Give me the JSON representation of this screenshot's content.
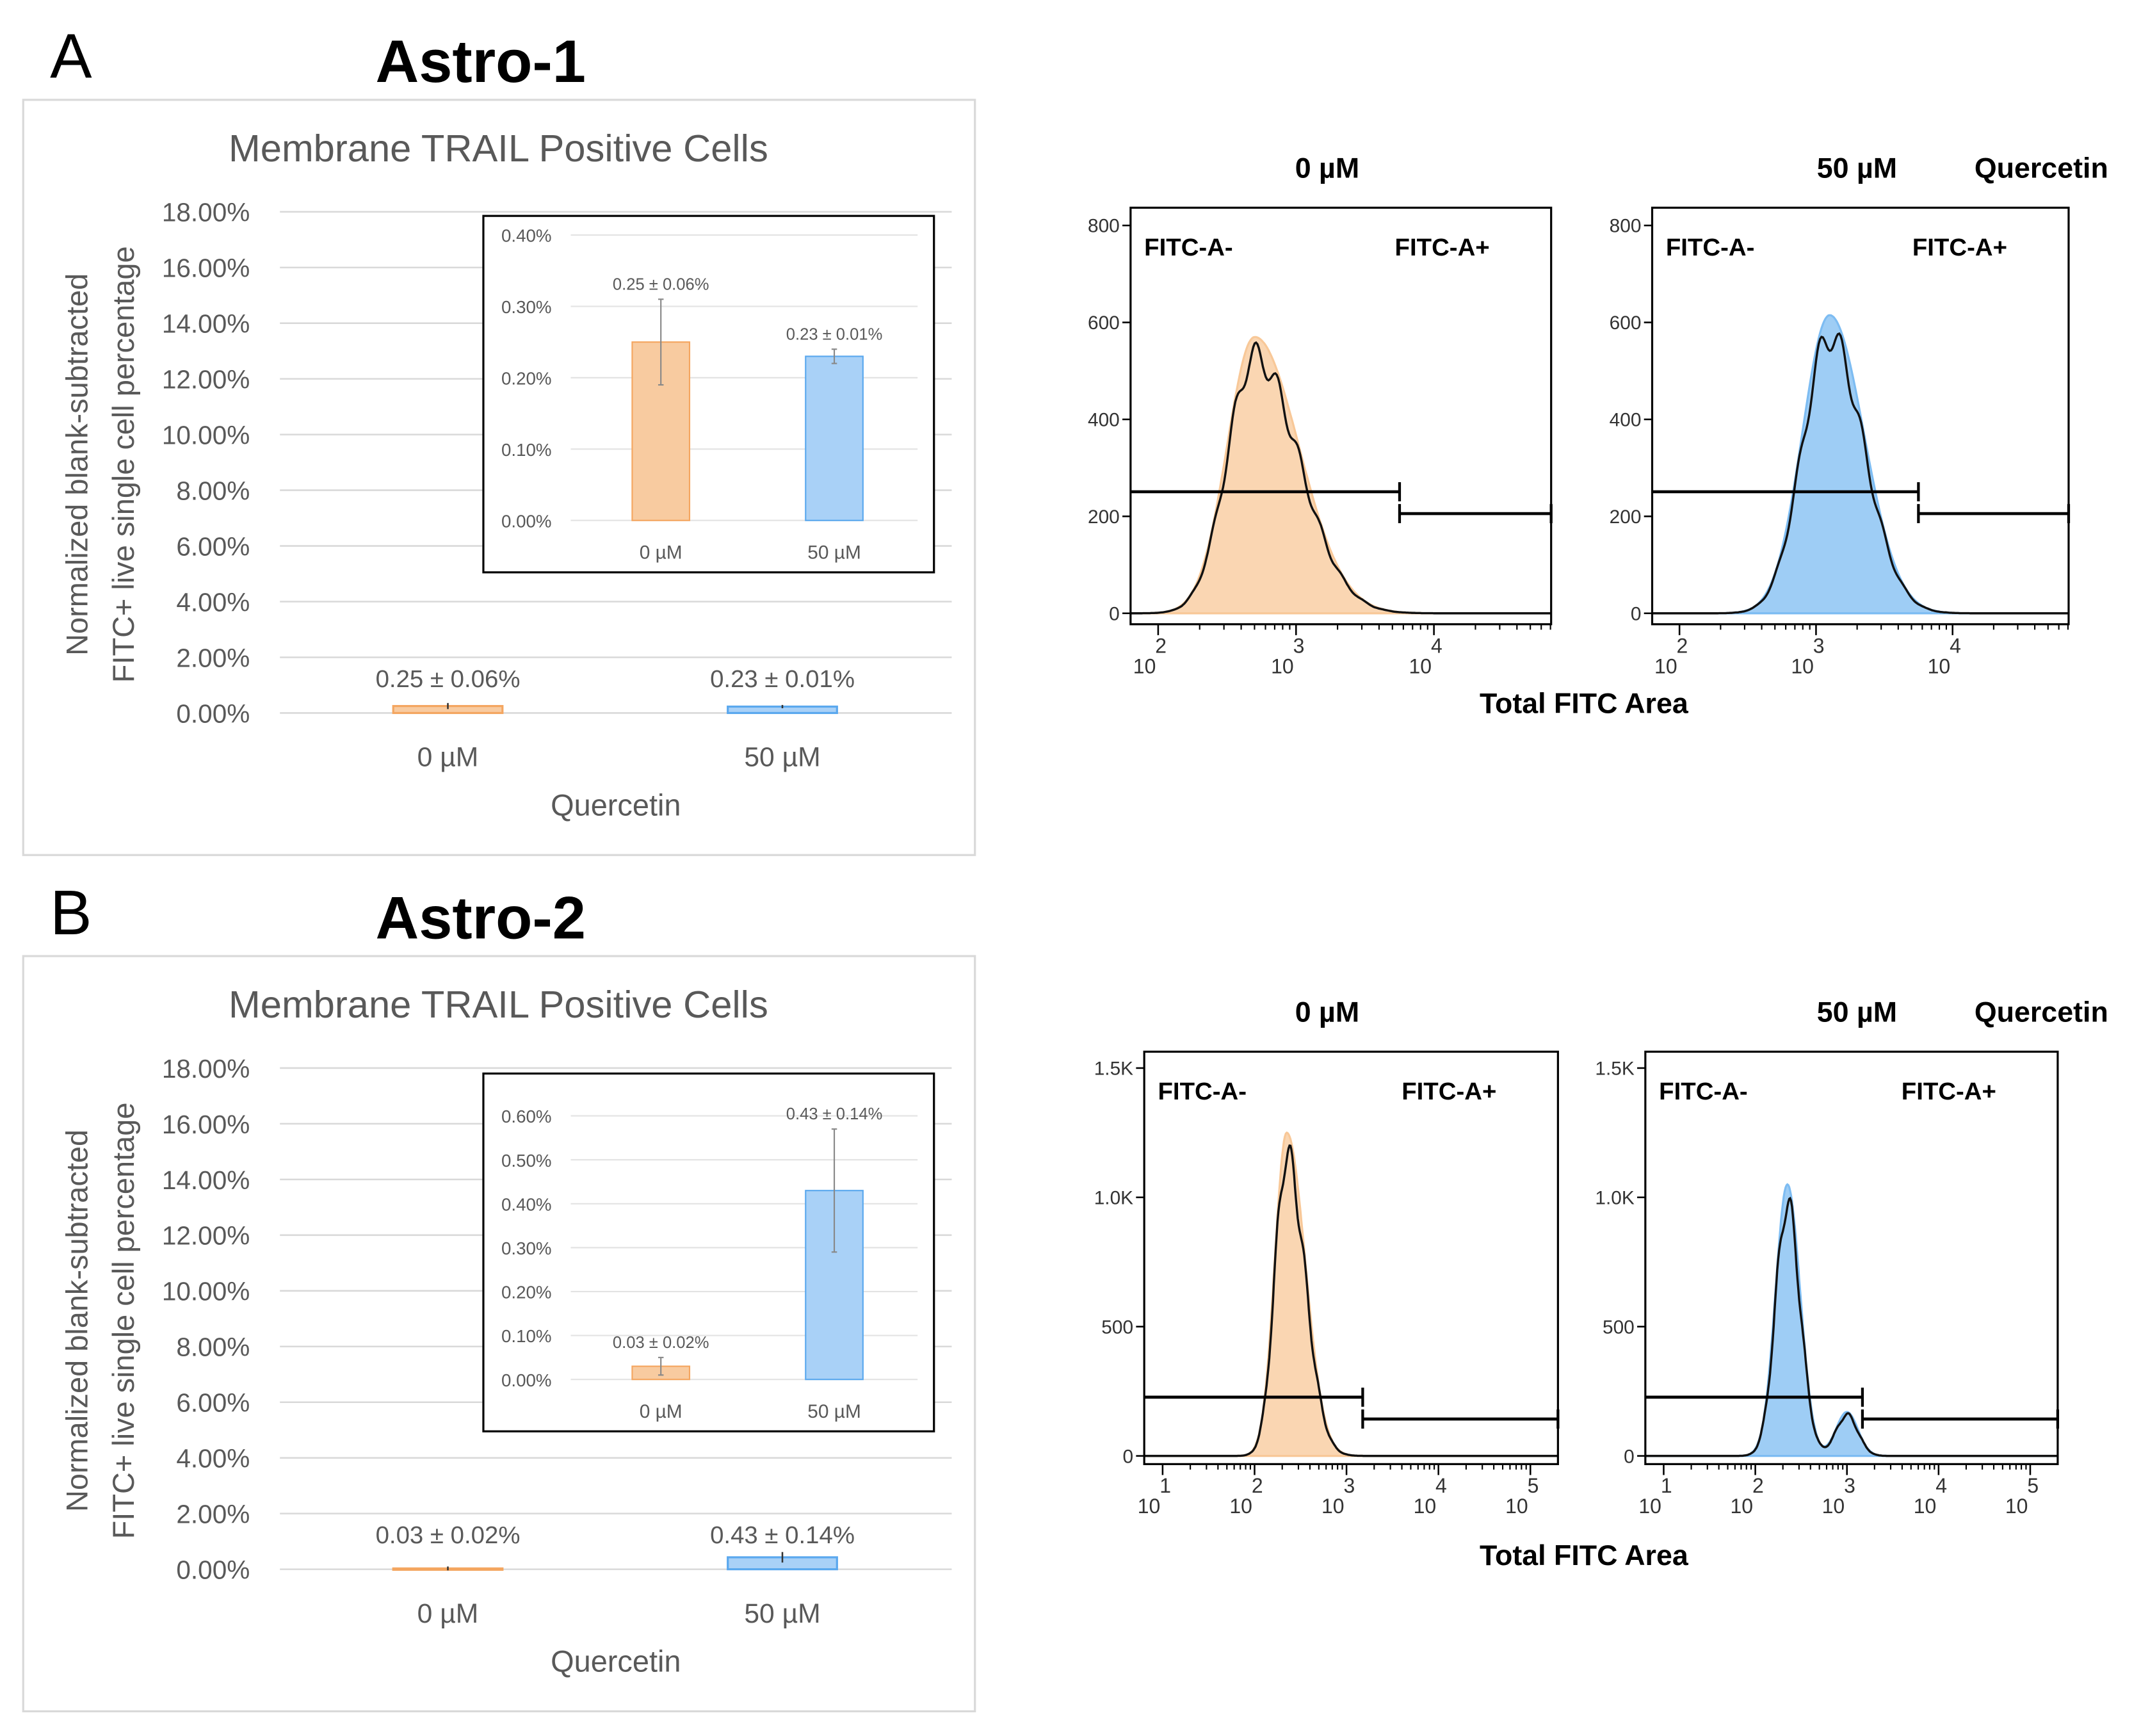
{
  "panels": [
    {
      "letter": "A",
      "title": "Astro-1",
      "bar_chart": {
        "title": "Membrane TRAIL Positive Cells",
        "ylabel_line1": "Normalized blank-subtracted",
        "ylabel_line2": "FITC+ live single cell percentage",
        "xlabel": "Quercetin",
        "yticks": [
          "0.00%",
          "2.00%",
          "4.00%",
          "6.00%",
          "8.00%",
          "10.00%",
          "12.00%",
          "14.00%",
          "16.00%",
          "18.00%"
        ]
      },
      "inset": {
        "yticks": [
          "0.00%",
          "0.10%",
          "0.20%",
          "0.30%",
          "0.40%"
        ]
      },
      "flow": {
        "yticks": [
          "0",
          "200",
          "400",
          "600",
          "800"
        ],
        "xticks": [
          {
            "base": "10",
            "exp": "2"
          },
          {
            "base": "10",
            "exp": "3"
          },
          {
            "base": "10",
            "exp": "4"
          }
        ],
        "gate_neg": "FITC-A-",
        "gate_pos": "FITC-A+",
        "xlabel": "Total FITC Area",
        "title_0": "0 µM",
        "title_50": "50 µM",
        "treatment": "Quercetin"
      }
    },
    {
      "letter": "B",
      "title": "Astro-2",
      "bar_chart": {
        "title": "Membrane TRAIL Positive Cells",
        "ylabel_line1": "Normalized blank-subtracted",
        "ylabel_line2": "FITC+ live single cell percentage",
        "xlabel": "Quercetin",
        "yticks": [
          "0.00%",
          "2.00%",
          "4.00%",
          "6.00%",
          "8.00%",
          "10.00%",
          "12.00%",
          "14.00%",
          "16.00%",
          "18.00%"
        ]
      },
      "inset": {
        "yticks": [
          "0.00%",
          "0.10%",
          "0.20%",
          "0.30%",
          "0.40%",
          "0.50%",
          "0.60%"
        ]
      },
      "flow": {
        "yticks": [
          "0",
          "500",
          "1.0K",
          "1.5K"
        ],
        "xticks": [
          {
            "base": "10",
            "exp": "1"
          },
          {
            "base": "10",
            "exp": "2"
          },
          {
            "base": "10",
            "exp": "3"
          },
          {
            "base": "10",
            "exp": "4"
          },
          {
            "base": "10",
            "exp": "5"
          }
        ],
        "gate_neg": "FITC-A-",
        "gate_pos": "FITC-A+",
        "xlabel": "Total FITC Area",
        "title_0": "0 µM",
        "title_50": "50 µM",
        "treatment": "Quercetin"
      }
    }
  ],
  "chart_data": [
    {
      "type": "bar",
      "title": "Membrane TRAIL Positive Cells (Astro-1)",
      "categories": [
        "0 µM",
        "50 µM"
      ],
      "values": [
        0.25,
        0.23
      ],
      "errors": [
        0.06,
        0.01
      ],
      "data_labels": [
        "0.25 ± 0.06%",
        "0.23 ± 0.01%"
      ],
      "ylim": [
        0,
        18
      ],
      "inset_ylim": [
        0,
        0.4
      ],
      "unit": "%",
      "colors": [
        "#f8cba0",
        "#a9d1f7"
      ],
      "edge_colors": [
        "#f4a660",
        "#5aa8ee"
      ]
    },
    {
      "type": "bar",
      "title": "Membrane TRAIL Positive Cells (Astro-2)",
      "categories": [
        "0 µM",
        "50 µM"
      ],
      "values": [
        0.03,
        0.43
      ],
      "errors": [
        0.02,
        0.14
      ],
      "data_labels": [
        "0.03 ± 0.02%",
        "0.43 ± 0.14%"
      ],
      "ylim": [
        0,
        18
      ],
      "inset_ylim": [
        0,
        0.6
      ],
      "unit": "%",
      "colors": [
        "#f8cba0",
        "#a9d1f7"
      ],
      "edge_colors": [
        "#f4a660",
        "#5aa8ee"
      ]
    },
    {
      "type": "area",
      "title": "Astro-1 histograms",
      "xlabel": "Total FITC Area",
      "xscale": "log",
      "xlim_log10": [
        1.8,
        4.85
      ],
      "ylim": [
        0,
        800
      ],
      "gate_log10": 3.8,
      "series": [
        {
          "name": "0 µM",
          "color": "#f8c898",
          "mode_log10": 2.7,
          "peak": 570,
          "sd_left": 0.2,
          "sd_right": 0.32
        },
        {
          "name": "50 µM",
          "color": "#7dbcf2",
          "mode_log10": 3.1,
          "peak": 615,
          "sd_left": 0.2,
          "sd_right": 0.25
        }
      ]
    },
    {
      "type": "area",
      "title": "Astro-2 histograms",
      "xlabel": "Total FITC Area",
      "xscale": "log",
      "xlim_log10": [
        0.8,
        5.3
      ],
      "ylim": [
        0,
        1500
      ],
      "gate_log10": 3.05,
      "series": [
        {
          "name": "0 µM",
          "color": "#f8c898",
          "mode_log10": 2.35,
          "peak": 1250,
          "sd_left": 0.13,
          "sd_right": 0.2,
          "shoulder_log10": 2.8,
          "shoulder": 0
        },
        {
          "name": "50 µM",
          "color": "#7dbcf2",
          "mode_log10": 2.35,
          "peak": 1050,
          "sd_left": 0.13,
          "sd_right": 0.14,
          "shoulder_log10": 3.0,
          "shoulder": 170
        }
      ]
    }
  ]
}
